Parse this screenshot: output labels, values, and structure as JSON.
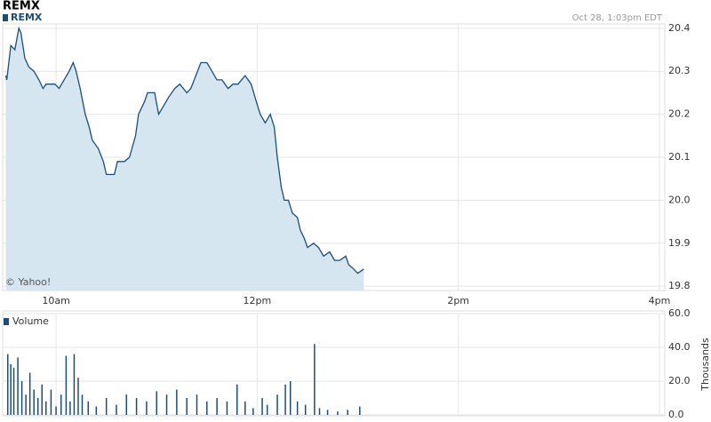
{
  "chart_data": [
    {
      "type": "area",
      "title": "REMX",
      "subtitle": "Oct 28, 1:03pm EDT",
      "annotation": "© Yahoo!",
      "x": [
        9.5,
        9.51,
        9.55,
        9.59,
        9.63,
        9.65,
        9.69,
        9.73,
        9.78,
        9.83,
        9.87,
        9.9,
        9.99,
        10.03,
        10.08,
        10.13,
        10.17,
        10.2,
        10.24,
        10.29,
        10.33,
        10.36,
        10.42,
        10.47,
        10.5,
        10.58,
        10.61,
        10.68,
        10.73,
        10.79,
        10.82,
        10.88,
        10.91,
        10.98,
        11.02,
        11.07,
        11.12,
        11.18,
        11.23,
        11.3,
        11.34,
        11.39,
        11.44,
        11.5,
        11.55,
        11.6,
        11.65,
        11.71,
        11.76,
        11.81,
        11.88,
        11.94,
        11.99,
        12.03,
        12.08,
        12.13,
        12.17,
        12.2,
        12.24,
        12.27,
        12.31,
        12.35,
        12.4,
        12.43,
        12.47,
        12.5,
        12.56,
        12.61,
        12.66,
        12.72,
        12.77,
        12.82,
        12.88,
        12.91,
        12.96,
        13.0,
        13.06
      ],
      "series": [
        {
          "name": "REMX",
          "color": "#1a4e7a",
          "fill": "#d6e6f1",
          "values": [
            20.29,
            20.28,
            20.36,
            20.35,
            20.4,
            20.39,
            20.33,
            20.31,
            20.3,
            20.28,
            20.26,
            20.27,
            20.27,
            20.26,
            20.28,
            20.3,
            20.32,
            20.3,
            20.26,
            20.2,
            20.17,
            20.14,
            20.12,
            20.09,
            20.06,
            20.06,
            20.09,
            20.09,
            20.1,
            20.15,
            20.2,
            20.23,
            20.25,
            20.25,
            20.2,
            20.22,
            20.24,
            20.26,
            20.27,
            20.25,
            20.26,
            20.29,
            20.32,
            20.32,
            20.3,
            20.28,
            20.28,
            20.26,
            20.27,
            20.27,
            20.29,
            20.27,
            20.23,
            20.2,
            20.18,
            20.2,
            20.17,
            20.1,
            20.03,
            20.0,
            20.0,
            19.97,
            19.96,
            19.93,
            19.91,
            19.89,
            19.9,
            19.89,
            19.87,
            19.88,
            19.86,
            19.86,
            19.87,
            19.85,
            19.84,
            19.83,
            19.84
          ]
        }
      ],
      "xlim": [
        9.5,
        16
      ],
      "xticks": [
        {
          "value": 10,
          "label": "10am"
        },
        {
          "value": 12,
          "label": "12pm"
        },
        {
          "value": 14,
          "label": "2pm"
        },
        {
          "value": 16,
          "label": "4pm"
        }
      ],
      "ylim": [
        19.79,
        20.41
      ],
      "yticks": [
        19.8,
        19.9,
        {
          "value": 20,
          "label": "20.0"
        },
        20.1,
        20.2,
        20.3,
        20.4
      ],
      "grid": true
    },
    {
      "type": "bar",
      "ylabel": "Thousands",
      "x": [
        9.52,
        9.55,
        9.58,
        9.62,
        9.66,
        9.7,
        9.74,
        9.78,
        9.82,
        9.86,
        9.9,
        9.95,
        10.0,
        10.05,
        10.1,
        10.14,
        10.18,
        10.22,
        10.26,
        10.32,
        10.4,
        10.5,
        10.6,
        10.7,
        10.8,
        10.9,
        11.0,
        11.1,
        11.2,
        11.3,
        11.4,
        11.5,
        11.6,
        11.7,
        11.8,
        11.88,
        11.96,
        12.05,
        12.1,
        12.2,
        12.28,
        12.33,
        12.4,
        12.48,
        12.57,
        12.62,
        12.7,
        12.8,
        12.9,
        13.02
      ],
      "series": [
        {
          "name": "Volume",
          "color": "#1a4e7a",
          "values": [
            36,
            30,
            28,
            34,
            20,
            12,
            25,
            15,
            10,
            18,
            8,
            15,
            5,
            12,
            35,
            8,
            36,
            22,
            12,
            8,
            5,
            10,
            6,
            12,
            10,
            8,
            14,
            12,
            15,
            10,
            12,
            8,
            10,
            8,
            18,
            8,
            4,
            10,
            6,
            12,
            18,
            20,
            8,
            6,
            42,
            4,
            3,
            2,
            3,
            5
          ]
        }
      ],
      "xlim": [
        9.5,
        16
      ],
      "ylim": [
        0,
        60
      ],
      "yticks": [
        {
          "value": 0,
          "label": "0.0"
        },
        {
          "value": 20,
          "label": "20.0"
        },
        {
          "value": 40,
          "label": "40.0"
        },
        {
          "value": 60,
          "label": "60.0"
        }
      ],
      "grid": true
    }
  ]
}
